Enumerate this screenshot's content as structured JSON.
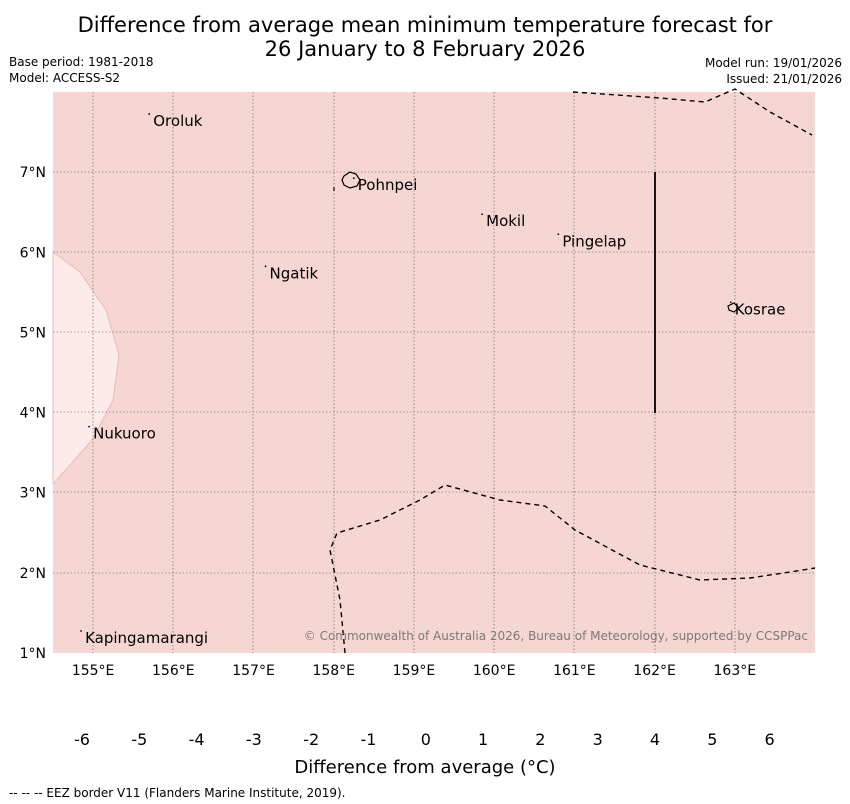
{
  "title": {
    "line1": "Difference from average mean minimum temperature forecast for",
    "line2": "26 January to 8 February 2026"
  },
  "meta": {
    "base_period": "Base period: 1981-2018",
    "model": "Model: ACCESS-S2",
    "model_run": "Model run: 19/01/2026",
    "issued": "Issued: 21/01/2026"
  },
  "map": {
    "lon_range": [
      154.5,
      164.0
    ],
    "lat_range": [
      1.0,
      8.0
    ],
    "lon_ticks": [
      "155°E",
      "156°E",
      "157°E",
      "158°E",
      "159°E",
      "160°E",
      "161°E",
      "162°E",
      "163°E"
    ],
    "lat_ticks": [
      "7°N",
      "6°N",
      "5°N",
      "4°N",
      "3°N",
      "2°N",
      "1°N"
    ],
    "background_category": "1 to 2",
    "places": [
      {
        "name": "Oroluk",
        "lon": 155.7,
        "lat": 7.65
      },
      {
        "name": "Pohnpei",
        "lon": 158.25,
        "lat": 6.85
      },
      {
        "name": "Mokil",
        "lon": 159.85,
        "lat": 6.4
      },
      {
        "name": "Pingelap",
        "lon": 160.8,
        "lat": 6.15
      },
      {
        "name": "Ngatik",
        "lon": 157.15,
        "lat": 5.75
      },
      {
        "name": "Kosrae",
        "lon": 162.95,
        "lat": 5.3
      },
      {
        "name": "Nukuoro",
        "lon": 154.95,
        "lat": 3.75
      },
      {
        "name": "Kapingamarangi",
        "lon": 154.85,
        "lat": 1.2
      }
    ],
    "copyright": "© Commonwealth of Australia 2026, Bureau of Meteorology, supported by CCSPPac"
  },
  "colorbar": {
    "labels": [
      "-6",
      "-5",
      "-4",
      "-3",
      "-2",
      "-1",
      "0",
      "1",
      "2",
      "3",
      "4",
      "5",
      "6"
    ],
    "colors": [
      "#1b2a8f",
      "#2a45b8",
      "#3656dd",
      "#5d78e4",
      "#8b9deb",
      "#c3caf4",
      "#eef0fc",
      "#fdecec",
      "#f7d5d3",
      "#eeaaa8",
      "#e6807c",
      "#d8443b",
      "#a82b26",
      "#7d1a16"
    ],
    "title": "Difference from average (°C)"
  },
  "footnote": "--  --  -- EEZ border V11 (Flanders Marine Institute, 2019)."
}
